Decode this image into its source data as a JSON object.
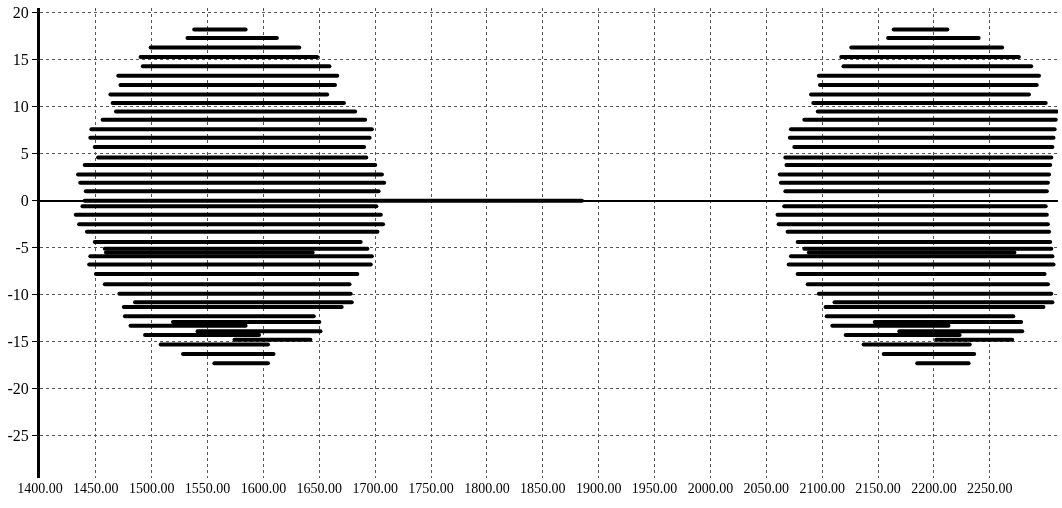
{
  "chart_data": {
    "type": "line",
    "xlim": [
      1400,
      2311
    ],
    "ylim": [
      -29.5,
      20.5
    ],
    "xticks": [
      {
        "value": 1400,
        "label": "1400.00"
      },
      {
        "value": 1450,
        "label": "1450.00"
      },
      {
        "value": 1500,
        "label": "1500.00"
      },
      {
        "value": 1550,
        "label": "1550.00"
      },
      {
        "value": 1600,
        "label": "1600.00"
      },
      {
        "value": 1650,
        "label": "1650.00"
      },
      {
        "value": 1700,
        "label": "1700.00"
      },
      {
        "value": 1750,
        "label": "1750.00"
      },
      {
        "value": 1800,
        "label": "1800.00"
      },
      {
        "value": 1850,
        "label": "1850.00"
      },
      {
        "value": 1900,
        "label": "1900.00"
      },
      {
        "value": 1950,
        "label": "1950.00"
      },
      {
        "value": 2000,
        "label": "2000.00"
      },
      {
        "value": 2050,
        "label": "2050.00"
      },
      {
        "value": 2100,
        "label": "2100.00"
      },
      {
        "value": 2150,
        "label": "2150.00"
      },
      {
        "value": 2200,
        "label": "2200.00"
      },
      {
        "value": 2250,
        "label": "2250.00"
      }
    ],
    "yticks": [
      20,
      15,
      10,
      5,
      0,
      -5,
      -10,
      -15,
      -20,
      -25
    ],
    "grid": true,
    "marker": "none",
    "line_style": "solid",
    "series": [
      {
        "color": "#000000",
        "x": [
          1538,
          1584
        ],
        "values": [
          18.2,
          18.2
        ]
      },
      {
        "color": "#000000",
        "x": [
          1532,
          1612
        ],
        "values": [
          17.3,
          17.3
        ]
      },
      {
        "color": "#000000",
        "x": [
          1499,
          1632
        ],
        "values": [
          16.3,
          16.3
        ]
      },
      {
        "color": "#000000",
        "x": [
          1490,
          1648
        ],
        "values": [
          15.3,
          15.3
        ]
      },
      {
        "color": "#000000",
        "x": [
          1492,
          1659
        ],
        "values": [
          14.3,
          14.3
        ]
      },
      {
        "color": "#000000",
        "x": [
          1470,
          1666
        ],
        "values": [
          13.3,
          13.3
        ]
      },
      {
        "color": "#000000",
        "x": [
          1472,
          1664
        ],
        "values": [
          12.3,
          12.3
        ]
      },
      {
        "color": "#000000",
        "x": [
          1463,
          1657
        ],
        "values": [
          11.3,
          11.3
        ]
      },
      {
        "color": "#000000",
        "x": [
          1465,
          1672
        ],
        "values": [
          10.4,
          10.4
        ]
      },
      {
        "color": "#000000",
        "x": [
          1468,
          1682
        ],
        "values": [
          9.5,
          9.5
        ]
      },
      {
        "color": "#000000",
        "x": [
          1456,
          1691
        ],
        "values": [
          8.6,
          8.6
        ]
      },
      {
        "color": "#000000",
        "x": [
          1446,
          1697
        ],
        "values": [
          7.6,
          7.6
        ]
      },
      {
        "color": "#000000",
        "x": [
          1445,
          1695
        ],
        "values": [
          6.7,
          6.7
        ]
      },
      {
        "color": "#000000",
        "x": [
          1449,
          1690
        ],
        "values": [
          5.7,
          5.7
        ]
      },
      {
        "color": "#000000",
        "x": [
          1452,
          1692
        ],
        "values": [
          4.6,
          4.6
        ]
      },
      {
        "color": "#000000",
        "x": [
          1440,
          1700
        ],
        "values": [
          3.8,
          3.8
        ]
      },
      {
        "color": "#000000",
        "x": [
          1434,
          1706
        ],
        "values": [
          2.8,
          2.8
        ]
      },
      {
        "color": "#000000",
        "x": [
          1436,
          1708
        ],
        "values": [
          1.9,
          1.9
        ]
      },
      {
        "color": "#000000",
        "x": [
          1441,
          1703
        ],
        "values": [
          1.0,
          1.0
        ]
      },
      {
        "color": "#000000",
        "x": [
          1440,
          1885
        ],
        "values": [
          0,
          0
        ]
      },
      {
        "color": "#000000",
        "x": [
          1438,
          1701
        ],
        "values": [
          -0.6,
          -0.6
        ]
      },
      {
        "color": "#000000",
        "x": [
          1432,
          1705
        ],
        "values": [
          -1.5,
          -1.5
        ]
      },
      {
        "color": "#000000",
        "x": [
          1435,
          1707
        ],
        "values": [
          -2.5,
          -2.5
        ]
      },
      {
        "color": "#000000",
        "x": [
          1442,
          1702
        ],
        "values": [
          -3.3,
          -3.3
        ]
      },
      {
        "color": "#000000",
        "x": [
          1449,
          1687
        ],
        "values": [
          -4.4,
          -4.4
        ]
      },
      {
        "color": "#000000",
        "x": [
          1458,
          1693
        ],
        "values": [
          -5.1,
          -5.1
        ]
      },
      {
        "color": "#000000",
        "x": [
          1459,
          1644
        ],
        "values": [
          -5.5,
          -5.5
        ]
      },
      {
        "color": "#000000",
        "x": [
          1445,
          1697
        ],
        "values": [
          -5.9,
          -5.9
        ]
      },
      {
        "color": "#000000",
        "x": [
          1444,
          1696
        ],
        "values": [
          -6.8,
          -6.8
        ]
      },
      {
        "color": "#000000",
        "x": [
          1450,
          1684
        ],
        "values": [
          -7.8,
          -7.8
        ]
      },
      {
        "color": "#000000",
        "x": [
          1458,
          1677
        ],
        "values": [
          -8.9,
          -8.9
        ]
      },
      {
        "color": "#000000",
        "x": [
          1471,
          1678
        ],
        "values": [
          -9.9,
          -9.9
        ]
      },
      {
        "color": "#000000",
        "x": [
          1485,
          1679
        ],
        "values": [
          -10.8,
          -10.8
        ]
      },
      {
        "color": "#000000",
        "x": [
          1475,
          1670
        ],
        "values": [
          -11.3,
          -11.3
        ]
      },
      {
        "color": "#000000",
        "x": [
          1476,
          1645
        ],
        "values": [
          -12.3,
          -12.3
        ]
      },
      {
        "color": "#000000",
        "x": [
          1519,
          1650
        ],
        "values": [
          -12.9,
          -12.9
        ]
      },
      {
        "color": "#000000",
        "x": [
          1481,
          1584
        ],
        "values": [
          -13.3,
          -13.3
        ]
      },
      {
        "color": "#000000",
        "x": [
          1541,
          1651
        ],
        "values": [
          -13.9,
          -13.9
        ]
      },
      {
        "color": "#000000",
        "x": [
          1494,
          1596
        ],
        "values": [
          -14.3,
          -14.3
        ]
      },
      {
        "color": "#000000",
        "x": [
          1574,
          1642
        ],
        "values": [
          -14.8,
          -14.8
        ]
      },
      {
        "color": "#000000",
        "x": [
          1508,
          1604
        ],
        "values": [
          -15.3,
          -15.3
        ]
      },
      {
        "color": "#000000",
        "x": [
          1528,
          1609
        ],
        "values": [
          -16.3,
          -16.3
        ]
      },
      {
        "color": "#000000",
        "x": [
          1556,
          1604
        ],
        "values": [
          -17.3,
          -17.3
        ]
      },
      {
        "color": "#000000",
        "x": [
          2164,
          2212
        ],
        "values": [
          18.2,
          18.2
        ]
      },
      {
        "color": "#000000",
        "x": [
          2159,
          2240
        ],
        "values": [
          17.3,
          17.3
        ]
      },
      {
        "color": "#000000",
        "x": [
          2126,
          2261
        ],
        "values": [
          16.3,
          16.3
        ]
      },
      {
        "color": "#000000",
        "x": [
          2117,
          2276
        ],
        "values": [
          15.3,
          15.3
        ]
      },
      {
        "color": "#000000",
        "x": [
          2119,
          2287
        ],
        "values": [
          14.3,
          14.3
        ]
      },
      {
        "color": "#000000",
        "x": [
          2097,
          2294
        ],
        "values": [
          13.3,
          13.3
        ]
      },
      {
        "color": "#000000",
        "x": [
          2098,
          2292
        ],
        "values": [
          12.3,
          12.3
        ]
      },
      {
        "color": "#000000",
        "x": [
          2090,
          2285
        ],
        "values": [
          11.3,
          11.3
        ]
      },
      {
        "color": "#000000",
        "x": [
          2092,
          2300
        ],
        "values": [
          10.4,
          10.4
        ]
      },
      {
        "color": "#000000",
        "x": [
          2096,
          2310
        ],
        "values": [
          9.5,
          9.5
        ]
      },
      {
        "color": "#000000",
        "x": [
          2084,
          2309
        ],
        "values": [
          8.6,
          8.6
        ]
      },
      {
        "color": "#000000",
        "x": [
          2072,
          2308
        ],
        "values": [
          7.6,
          7.6
        ]
      },
      {
        "color": "#000000",
        "x": [
          2071,
          2307
        ],
        "values": [
          6.7,
          6.7
        ]
      },
      {
        "color": "#000000",
        "x": [
          2075,
          2306
        ],
        "values": [
          5.7,
          5.7
        ]
      },
      {
        "color": "#000000",
        "x": [
          2067,
          2305
        ],
        "values": [
          4.6,
          4.6
        ]
      },
      {
        "color": "#000000",
        "x": [
          2068,
          2304
        ],
        "values": [
          3.8,
          3.8
        ]
      },
      {
        "color": "#000000",
        "x": [
          2062,
          2303
        ],
        "values": [
          2.8,
          2.8
        ]
      },
      {
        "color": "#000000",
        "x": [
          2063,
          2302
        ],
        "values": [
          1.9,
          1.9
        ]
      },
      {
        "color": "#000000",
        "x": [
          2067,
          2301
        ],
        "values": [
          1.0,
          1.0
        ]
      },
      {
        "color": "#000000",
        "x": [
          2066,
          2300
        ],
        "values": [
          -0.6,
          -0.6
        ]
      },
      {
        "color": "#000000",
        "x": [
          2060,
          2301
        ],
        "values": [
          -1.5,
          -1.5
        ]
      },
      {
        "color": "#000000",
        "x": [
          2061,
          2302
        ],
        "values": [
          -2.5,
          -2.5
        ]
      },
      {
        "color": "#000000",
        "x": [
          2069,
          2303
        ],
        "values": [
          -3.3,
          -3.3
        ]
      },
      {
        "color": "#000000",
        "x": [
          2078,
          2304
        ],
        "values": [
          -4.4,
          -4.4
        ]
      },
      {
        "color": "#000000",
        "x": [
          2084,
          2305
        ],
        "values": [
          -5.1,
          -5.1
        ]
      },
      {
        "color": "#000000",
        "x": [
          2088,
          2272
        ],
        "values": [
          -5.5,
          -5.5
        ]
      },
      {
        "color": "#000000",
        "x": [
          2072,
          2306
        ],
        "values": [
          -5.9,
          -5.9
        ]
      },
      {
        "color": "#000000",
        "x": [
          2070,
          2307
        ],
        "values": [
          -6.8,
          -6.8
        ]
      },
      {
        "color": "#000000",
        "x": [
          2078,
          2299
        ],
        "values": [
          -7.8,
          -7.8
        ]
      },
      {
        "color": "#000000",
        "x": [
          2087,
          2302
        ],
        "values": [
          -8.9,
          -8.9
        ]
      },
      {
        "color": "#000000",
        "x": [
          2097,
          2305
        ],
        "values": [
          -9.9,
          -9.9
        ]
      },
      {
        "color": "#000000",
        "x": [
          2111,
          2306
        ],
        "values": [
          -10.8,
          -10.8
        ]
      },
      {
        "color": "#000000",
        "x": [
          2103,
          2298
        ],
        "values": [
          -11.3,
          -11.3
        ]
      },
      {
        "color": "#000000",
        "x": [
          2104,
          2271
        ],
        "values": [
          -12.3,
          -12.3
        ]
      },
      {
        "color": "#000000",
        "x": [
          2147,
          2278
        ],
        "values": [
          -12.9,
          -12.9
        ]
      },
      {
        "color": "#000000",
        "x": [
          2109,
          2213
        ],
        "values": [
          -13.3,
          -13.3
        ]
      },
      {
        "color": "#000000",
        "x": [
          2169,
          2279
        ],
        "values": [
          -13.9,
          -13.9
        ]
      },
      {
        "color": "#000000",
        "x": [
          2121,
          2223
        ],
        "values": [
          -14.3,
          -14.3
        ]
      },
      {
        "color": "#000000",
        "x": [
          2202,
          2270
        ],
        "values": [
          -14.8,
          -14.8
        ]
      },
      {
        "color": "#000000",
        "x": [
          2137,
          2232
        ],
        "values": [
          -15.3,
          -15.3
        ]
      },
      {
        "color": "#000000",
        "x": [
          2155,
          2236
        ],
        "values": [
          -16.3,
          -16.3
        ]
      },
      {
        "color": "#000000",
        "x": [
          2185,
          2231
        ],
        "values": [
          -17.3,
          -17.3
        ]
      }
    ]
  }
}
